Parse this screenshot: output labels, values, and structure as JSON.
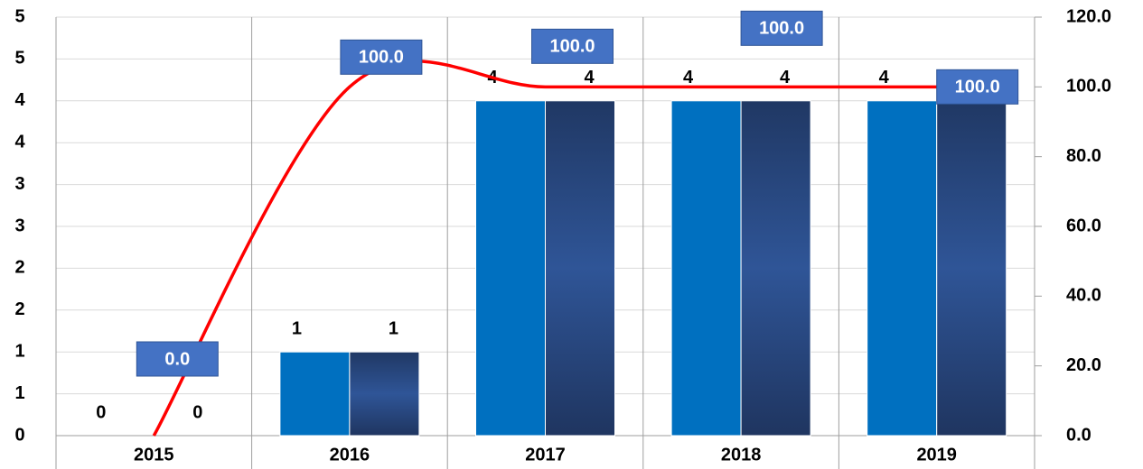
{
  "chart_data": {
    "type": "bar",
    "categories": [
      "2015",
      "2016",
      "2017",
      "2018",
      "2019"
    ],
    "series": [
      {
        "color": "#0070c0",
        "values": [
          0,
          1,
          4,
          4,
          4
        ]
      },
      {
        "color": "#2a4a85",
        "values": [
          0,
          1,
          4,
          4,
          4
        ]
      },
      {
        "type": "line",
        "axis": "y2",
        "color": "#ff0000",
        "values": [
          0,
          100,
          100,
          100,
          100
        ],
        "value_labels": [
          "0.0",
          "100.0",
          "100.0",
          "100.0",
          "100.0"
        ]
      }
    ],
    "ylim": [
      0,
      5
    ],
    "yticks": [
      0,
      {
        "value": 0.5,
        "label": "1"
      },
      1,
      {
        "value": 1.5,
        "label": "2"
      },
      2,
      {
        "value": 2.5,
        "label": "3"
      },
      3,
      {
        "value": 3.5,
        "label": "4"
      },
      4,
      {
        "value": 4.5,
        "label": "5"
      },
      5
    ],
    "y2lim": [
      0,
      120
    ],
    "y2ticks": [
      {
        "value": 0,
        "label": "0.0"
      },
      {
        "value": 20,
        "label": "20.0"
      },
      {
        "value": 40,
        "label": "40.0"
      },
      {
        "value": 60,
        "label": "60.0"
      },
      {
        "value": 80,
        "label": "80.0"
      },
      {
        "value": 100,
        "label": "100.0"
      },
      {
        "value": 120,
        "label": "120.0"
      }
    ],
    "grid": true
  }
}
